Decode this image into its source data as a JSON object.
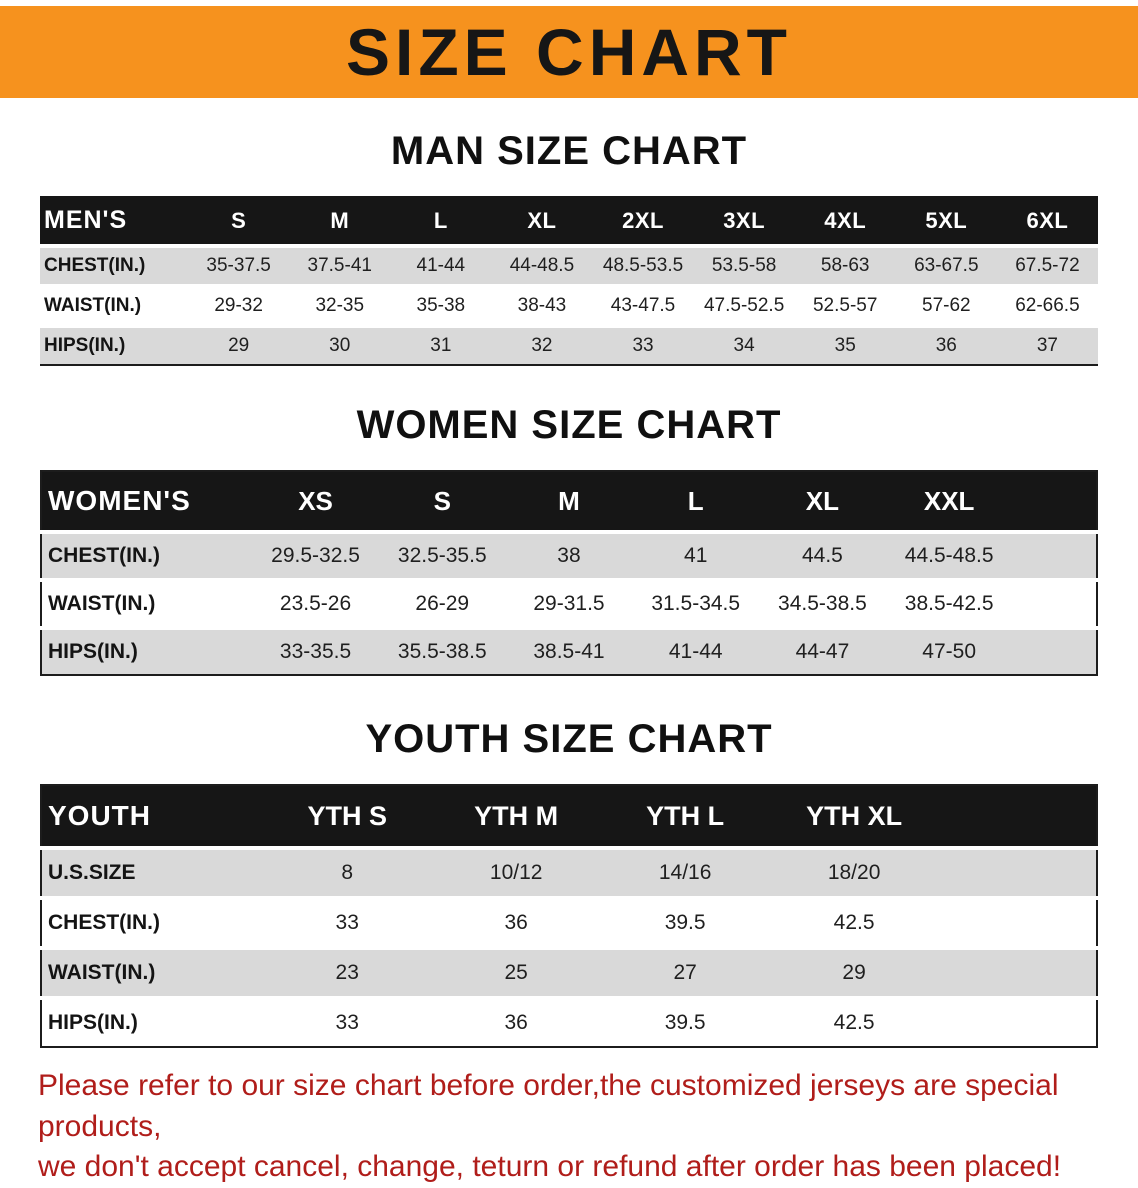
{
  "banner": {
    "title": "SIZE CHART"
  },
  "colors": {
    "banner_bg": "#f6921e",
    "table_header_bg": "#161616",
    "row_shade": "#d9d9d9",
    "disclaimer_red": "#b01d1a"
  },
  "sections": [
    {
      "heading": "MAN SIZE CHART",
      "table": {
        "header": [
          "MEN'S",
          "S",
          "M",
          "L",
          "XL",
          "2XL",
          "3XL",
          "4XL",
          "5XL",
          "6XL"
        ],
        "rows": [
          [
            "CHEST(IN.)",
            "35-37.5",
            "37.5-41",
            "41-44",
            "44-48.5",
            "48.5-53.5",
            "53.5-58",
            "58-63",
            "63-67.5",
            "67.5-72"
          ],
          [
            "WAIST(IN.)",
            "29-32",
            "32-35",
            "35-38",
            "38-43",
            "43-47.5",
            "47.5-52.5",
            "52.5-57",
            "57-62",
            "62-66.5"
          ],
          [
            "HIPS(IN.)",
            "29",
            "30",
            "31",
            "32",
            "33",
            "34",
            "35",
            "36",
            "37"
          ]
        ]
      }
    },
    {
      "heading": "WOMEN SIZE CHART",
      "table": {
        "header": [
          "WOMEN'S",
          "XS",
          "S",
          "M",
          "L",
          "XL",
          "XXL"
        ],
        "rows": [
          [
            "CHEST(IN.)",
            "29.5-32.5",
            "32.5-35.5",
            "38",
            "41",
            "44.5",
            "44.5-48.5"
          ],
          [
            "WAIST(IN.)",
            "23.5-26",
            "26-29",
            "29-31.5",
            "31.5-34.5",
            "34.5-38.5",
            "38.5-42.5"
          ],
          [
            "HIPS(IN.)",
            "33-35.5",
            "35.5-38.5",
            "38.5-41",
            "41-44",
            "44-47",
            "47-50"
          ]
        ]
      }
    },
    {
      "heading": "YOUTH SIZE CHART",
      "table": {
        "header": [
          "YOUTH",
          "YTH S",
          "YTH M",
          "YTH L",
          "YTH XL"
        ],
        "rows": [
          [
            "U.S.SIZE",
            "8",
            "10/12",
            "14/16",
            "18/20"
          ],
          [
            "CHEST(IN.)",
            "33",
            "36",
            "39.5",
            "42.5"
          ],
          [
            "WAIST(IN.)",
            "23",
            "25",
            "27",
            "29"
          ],
          [
            "HIPS(IN.)",
            "33",
            "36",
            "39.5",
            "42.5"
          ]
        ]
      }
    }
  ],
  "disclaimer": {
    "line1": "Please refer to our size chart before order,the customized jerseys are special products,",
    "line2": "we don't accept cancel, change, teturn or refund after order has been placed!"
  }
}
